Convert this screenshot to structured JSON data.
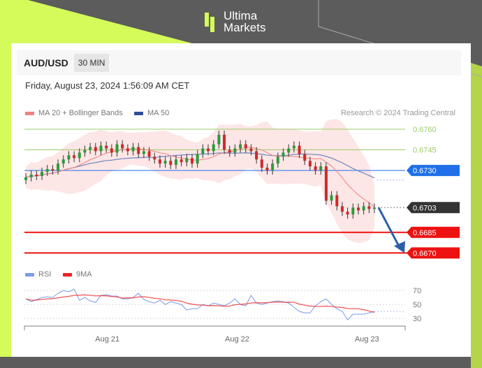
{
  "brand": {
    "line1": "Ultima",
    "line2": "Markets",
    "accent": "#d4fb5a"
  },
  "header": {
    "pair": "AUD/USD",
    "timeframe": "30 MIN"
  },
  "timestamp": "Friday, August 23, 2024 1:56:09 AM CET",
  "legend": {
    "ma20": "MA 20 + Bollinger Bands",
    "ma50": "MA 50",
    "rsi": "RSI",
    "ma9": "9MA"
  },
  "credit": "Research © 2024 Trading Central",
  "chart_data": [
    {
      "type": "candlestick",
      "ylim": [
        0.6662,
        0.6773
      ],
      "closes": [
        0.6725,
        0.6727,
        0.6726,
        0.6729,
        0.6731,
        0.673,
        0.6735,
        0.6738,
        0.6741,
        0.6739,
        0.6743,
        0.6745,
        0.6747,
        0.6744,
        0.6748,
        0.6746,
        0.6743,
        0.6749,
        0.6746,
        0.6744,
        0.6747,
        0.6742,
        0.6744,
        0.674,
        0.6738,
        0.6735,
        0.6737,
        0.6734,
        0.6738,
        0.6736,
        0.6739,
        0.6735,
        0.6742,
        0.6746,
        0.6744,
        0.6749,
        0.6756,
        0.6745,
        0.6743,
        0.6746,
        0.6749,
        0.6746,
        0.6744,
        0.6738,
        0.6732,
        0.673,
        0.6735,
        0.674,
        0.6743,
        0.6746,
        0.6748,
        0.6742,
        0.6737,
        0.6733,
        0.673,
        0.6733,
        0.6708,
        0.6712,
        0.6704,
        0.67,
        0.6698,
        0.6703,
        0.6701,
        0.6704,
        0.6702,
        0.6703
      ],
      "levels": [
        {
          "value": 0.676,
          "label": "0.6760",
          "color": "#9bcc6a",
          "style": "text"
        },
        {
          "value": 0.6745,
          "label": "0.6745",
          "color": "#9bcc6a",
          "style": "text"
        },
        {
          "value": 0.673,
          "label": "0.6730",
          "color": "#1f6fe8",
          "style": "tag"
        },
        {
          "value": 0.6703,
          "label": "0.6703",
          "color": "#333333",
          "style": "tag"
        },
        {
          "value": 0.6685,
          "label": "0.6685",
          "color": "#ee1111",
          "style": "tag"
        },
        {
          "value": 0.667,
          "label": "0.6670",
          "color": "#ee1111",
          "style": "tag"
        }
      ],
      "projection": {
        "from": 0.6703,
        "to": 0.667,
        "color": "#2d5fa8"
      },
      "colors": {
        "up": "#2e9a3a",
        "down": "#cc2a2a",
        "ma20": "#f08080",
        "ma50": "#6f86c0",
        "band": "#fde0e0"
      }
    },
    {
      "type": "line",
      "ylim": [
        20,
        78
      ],
      "yticks": [
        70,
        50,
        30
      ],
      "rsi": [
        58,
        54,
        57,
        60,
        61,
        60,
        66,
        70,
        68,
        72,
        56,
        60,
        55,
        53,
        63,
        64,
        62,
        62,
        58,
        58,
        60,
        66,
        57,
        54,
        52,
        56,
        50,
        54,
        52,
        50,
        42,
        44,
        44,
        50,
        48,
        52,
        50,
        48,
        52,
        58,
        50,
        48,
        63,
        52,
        50,
        52,
        54,
        55,
        54,
        52,
        46,
        40,
        38,
        38,
        48,
        54,
        58,
        50,
        44,
        40,
        28,
        36,
        36,
        36,
        38,
        40
      ],
      "colors": {
        "rsi": "#7a9be8",
        "ma9": "#ee3333"
      },
      "xlabels": [
        {
          "label": "Aug 21",
          "index": 15.2
        },
        {
          "label": "Aug 22",
          "index": 39.4
        },
        {
          "label": "Aug 23",
          "index": 63.6
        }
      ]
    }
  ]
}
